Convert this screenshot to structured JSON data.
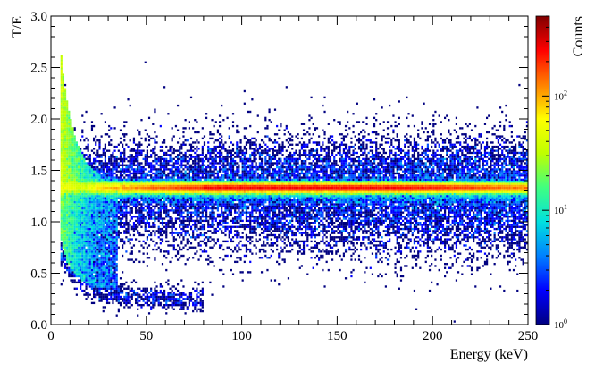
{
  "chart_data": {
    "type": "heatmap",
    "title": "",
    "xlabel": "Energy (keV)",
    "ylabel": "T/E",
    "xlim": [
      0,
      250
    ],
    "ylim": [
      0.0,
      3.0
    ],
    "x_ticks": [
      "0",
      "50",
      "100",
      "150",
      "200",
      "250"
    ],
    "y_ticks": [
      "0.0",
      "0.5",
      "1.0",
      "1.5",
      "2.0",
      "2.5",
      "3.0"
    ],
    "colorbar": {
      "label": "Counts",
      "scale": "log",
      "range": [
        1,
        500
      ],
      "ticks": [
        {
          "value": 1,
          "base": "10",
          "exp": "0"
        },
        {
          "value": 10,
          "base": "10",
          "exp": "1"
        },
        {
          "value": 100,
          "base": "10",
          "exp": "2"
        }
      ],
      "colormap": [
        "#000080",
        "#0000ff",
        "#0080ff",
        "#00e0e0",
        "#40ff80",
        "#c0ff00",
        "#ffff00",
        "#ff8000",
        "#ff0000",
        "#800000"
      ]
    },
    "features": {
      "main_band": {
        "y": 1.33,
        "x_range": [
          0,
          250
        ],
        "peak_counts": 400
      },
      "low_energy_spread": {
        "x_range": [
          5,
          30
        ],
        "y_range": [
          0.35,
          2.6
        ]
      },
      "upper_scatter": {
        "y_range": [
          1.35,
          1.75
        ]
      },
      "lower_scatter": {
        "y_range": [
          0.2,
          1.3
        ]
      }
    }
  }
}
